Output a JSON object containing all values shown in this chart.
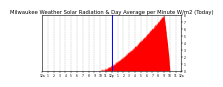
{
  "title": "Milwaukee Weather Solar Radiation & Day Average per Minute W/m2 (Today)",
  "title_fontsize": 3.8,
  "background_color": "#ffffff",
  "plot_bg_color": "#ffffff",
  "bar_color": "#ff0000",
  "line_color": "#0000ff",
  "grid_color": "#888888",
  "y_max": 800,
  "y_min": 0,
  "x_min": 0,
  "x_max": 1440,
  "current_time": 720,
  "peak_value": 800,
  "sunrise": 600,
  "sunset": 1320,
  "peak_minute": 1260,
  "x_tick_positions": [
    0,
    60,
    120,
    180,
    240,
    300,
    360,
    420,
    480,
    540,
    600,
    660,
    720,
    780,
    840,
    900,
    960,
    1020,
    1080,
    1140,
    1200,
    1260,
    1320,
    1380,
    1440
  ],
  "x_tick_labels": [
    "12a",
    "1",
    "2",
    "3",
    "4",
    "5",
    "6",
    "7",
    "8",
    "9",
    "10",
    "11",
    "12p",
    "1",
    "2",
    "3",
    "4",
    "5",
    "6",
    "7",
    "8",
    "9",
    "10",
    "11",
    "12a"
  ],
  "ytick_vals": [
    0,
    100,
    200,
    300,
    400,
    500,
    600,
    700,
    800
  ],
  "ytick_labels": [
    "0",
    "1",
    "2",
    "3",
    "4",
    "5",
    "6",
    "7",
    "8"
  ]
}
